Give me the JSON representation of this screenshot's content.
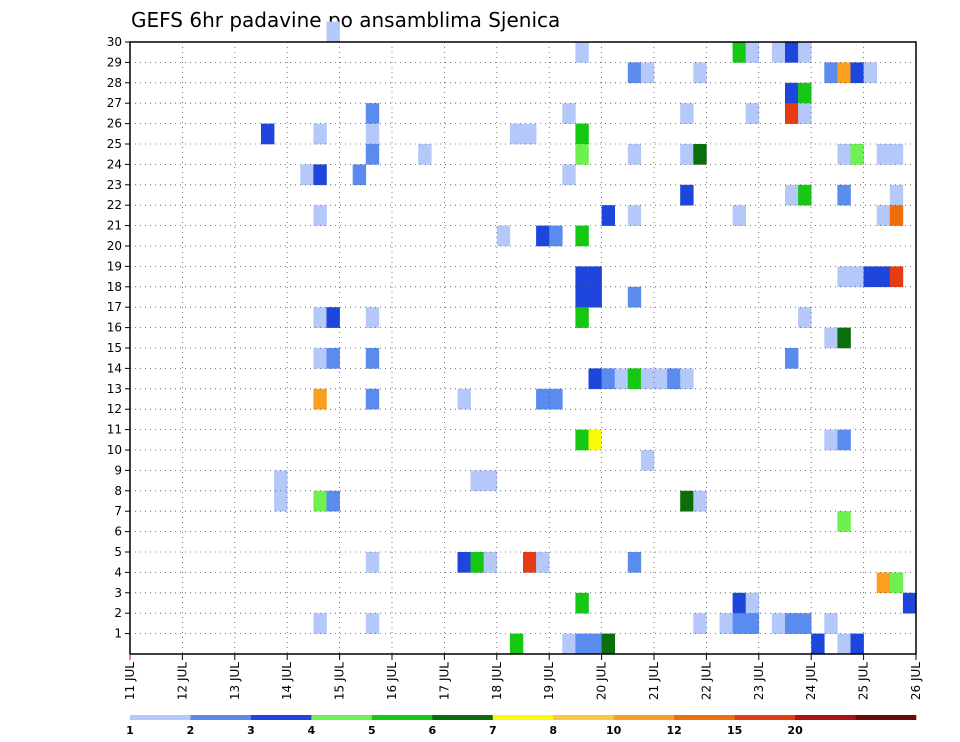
{
  "chart_data": {
    "type": "heatmap",
    "title": "GEFS 6hr padavine po ansamblima Sjenica",
    "xlabel": "",
    "ylabel": "",
    "x_ticks": [
      "11 JUL",
      "12 JUL",
      "13 JUL",
      "14 JUL",
      "15 JUL",
      "16 JUL",
      "17 JUL",
      "18 JUL",
      "19 JUL",
      "20 JUL",
      "21 JUL",
      "22 JUL",
      "23 JUL",
      "24 JUL",
      "25 JUL",
      "26 JUL"
    ],
    "y_ticks": [
      "1",
      "2",
      "3",
      "4",
      "5",
      "6",
      "7",
      "8",
      "9",
      "10",
      "11",
      "12",
      "13",
      "14",
      "15",
      "16",
      "17",
      "18",
      "19",
      "20",
      "21",
      "22",
      "23",
      "24",
      "25",
      "26",
      "27",
      "28",
      "29",
      "30"
    ],
    "xlim": [
      0,
      60
    ],
    "ylim": [
      0,
      30
    ],
    "grid": true,
    "x_unit": "6-hour steps since 11 JUL 00Z",
    "legend": {
      "placement": "bottom",
      "labels": [
        "1",
        "2",
        "3",
        "4",
        "5",
        "6",
        "7",
        "8",
        "10",
        "12",
        "15",
        "20"
      ],
      "colors": [
        "#b4c8fa",
        "#5a8cf0",
        "#1e46dc",
        "#6ef050",
        "#14c814",
        "#0a6e0a",
        "#fafa0a",
        "#fac83c",
        "#faa01e",
        "#f06e0a",
        "#e63c14",
        "#aa1414",
        "#6e0a0a"
      ]
    },
    "cells": [
      {
        "x": 15,
        "y": 30,
        "c": 0
      },
      {
        "x": 34,
        "y": 29,
        "c": 0
      },
      {
        "x": 46,
        "y": 29,
        "c": 4
      },
      {
        "x": 47,
        "y": 29,
        "c": 0
      },
      {
        "x": 49,
        "y": 29,
        "c": 0
      },
      {
        "x": 50,
        "y": 29,
        "c": 2
      },
      {
        "x": 51,
        "y": 29,
        "c": 0
      },
      {
        "x": 38,
        "y": 28,
        "c": 1
      },
      {
        "x": 39,
        "y": 28,
        "c": 0
      },
      {
        "x": 43,
        "y": 28,
        "c": 0
      },
      {
        "x": 53,
        "y": 28,
        "c": 1
      },
      {
        "x": 54,
        "y": 28,
        "c": 8
      },
      {
        "x": 55,
        "y": 28,
        "c": 2
      },
      {
        "x": 56,
        "y": 28,
        "c": 0
      },
      {
        "x": 50,
        "y": 27,
        "c": 2
      },
      {
        "x": 51,
        "y": 27,
        "c": 4
      },
      {
        "x": 18,
        "y": 26,
        "c": 1
      },
      {
        "x": 33,
        "y": 26,
        "c": 0
      },
      {
        "x": 42,
        "y": 26,
        "c": 0
      },
      {
        "x": 47,
        "y": 26,
        "c": 0
      },
      {
        "x": 50,
        "y": 26,
        "c": 10
      },
      {
        "x": 51,
        "y": 26,
        "c": 0
      },
      {
        "x": 10,
        "y": 25,
        "c": 2
      },
      {
        "x": 14,
        "y": 25,
        "c": 0
      },
      {
        "x": 18,
        "y": 25,
        "c": 0
      },
      {
        "x": 29,
        "y": 25,
        "c": 0
      },
      {
        "x": 30,
        "y": 25,
        "c": 0
      },
      {
        "x": 34,
        "y": 25,
        "c": 4
      },
      {
        "x": 18,
        "y": 24,
        "c": 1
      },
      {
        "x": 22,
        "y": 24,
        "c": 0
      },
      {
        "x": 34,
        "y": 24,
        "c": 3
      },
      {
        "x": 38,
        "y": 24,
        "c": 0
      },
      {
        "x": 42,
        "y": 24,
        "c": 0
      },
      {
        "x": 43,
        "y": 24,
        "c": 5
      },
      {
        "x": 54,
        "y": 24,
        "c": 0
      },
      {
        "x": 55,
        "y": 24,
        "c": 3
      },
      {
        "x": 57,
        "y": 24,
        "c": 0
      },
      {
        "x": 58,
        "y": 24,
        "c": 0
      },
      {
        "x": 13,
        "y": 23,
        "c": 0
      },
      {
        "x": 14,
        "y": 23,
        "c": 2
      },
      {
        "x": 17,
        "y": 23,
        "c": 1
      },
      {
        "x": 33,
        "y": 23,
        "c": 0
      },
      {
        "x": 42,
        "y": 22,
        "c": 2
      },
      {
        "x": 50,
        "y": 22,
        "c": 0
      },
      {
        "x": 51,
        "y": 22,
        "c": 4
      },
      {
        "x": 54,
        "y": 22,
        "c": 1
      },
      {
        "x": 58,
        "y": 22,
        "c": 0
      },
      {
        "x": 14,
        "y": 21,
        "c": 0
      },
      {
        "x": 36,
        "y": 21,
        "c": 2
      },
      {
        "x": 38,
        "y": 21,
        "c": 0
      },
      {
        "x": 46,
        "y": 21,
        "c": 0
      },
      {
        "x": 57,
        "y": 21,
        "c": 0
      },
      {
        "x": 58,
        "y": 21,
        "c": 9
      },
      {
        "x": 28,
        "y": 20,
        "c": 0
      },
      {
        "x": 31,
        "y": 20,
        "c": 2
      },
      {
        "x": 32,
        "y": 20,
        "c": 1
      },
      {
        "x": 34,
        "y": 20,
        "c": 4
      },
      {
        "x": 34,
        "y": 18,
        "c": 2
      },
      {
        "x": 35,
        "y": 18,
        "c": 2
      },
      {
        "x": 54,
        "y": 18,
        "c": 0
      },
      {
        "x": 55,
        "y": 18,
        "c": 0
      },
      {
        "x": 56,
        "y": 18,
        "c": 2
      },
      {
        "x": 57,
        "y": 18,
        "c": 2
      },
      {
        "x": 58,
        "y": 18,
        "c": 10
      },
      {
        "x": 34,
        "y": 17,
        "c": 2
      },
      {
        "x": 35,
        "y": 17,
        "c": 2
      },
      {
        "x": 38,
        "y": 17,
        "c": 1
      },
      {
        "x": 14,
        "y": 16,
        "c": 0
      },
      {
        "x": 15,
        "y": 16,
        "c": 2
      },
      {
        "x": 18,
        "y": 16,
        "c": 0
      },
      {
        "x": 34,
        "y": 16,
        "c": 4
      },
      {
        "x": 51,
        "y": 16,
        "c": 0
      },
      {
        "x": 53,
        "y": 15,
        "c": 0
      },
      {
        "x": 54,
        "y": 15,
        "c": 5
      },
      {
        "x": 14,
        "y": 14,
        "c": 0
      },
      {
        "x": 15,
        "y": 14,
        "c": 1
      },
      {
        "x": 18,
        "y": 14,
        "c": 1
      },
      {
        "x": 50,
        "y": 14,
        "c": 1
      },
      {
        "x": 35,
        "y": 13,
        "c": 2
      },
      {
        "x": 36,
        "y": 13,
        "c": 1
      },
      {
        "x": 37,
        "y": 13,
        "c": 0
      },
      {
        "x": 38,
        "y": 13,
        "c": 4
      },
      {
        "x": 39,
        "y": 13,
        "c": 0
      },
      {
        "x": 40,
        "y": 13,
        "c": 0
      },
      {
        "x": 41,
        "y": 13,
        "c": 1
      },
      {
        "x": 42,
        "y": 13,
        "c": 0
      },
      {
        "x": 14,
        "y": 12,
        "c": 8
      },
      {
        "x": 18,
        "y": 12,
        "c": 1
      },
      {
        "x": 25,
        "y": 12,
        "c": 0
      },
      {
        "x": 31,
        "y": 12,
        "c": 1
      },
      {
        "x": 32,
        "y": 12,
        "c": 1
      },
      {
        "x": 34,
        "y": 10,
        "c": 4
      },
      {
        "x": 35,
        "y": 10,
        "c": 6
      },
      {
        "x": 53,
        "y": 10,
        "c": 0
      },
      {
        "x": 54,
        "y": 10,
        "c": 1
      },
      {
        "x": 39,
        "y": 9,
        "c": 0
      },
      {
        "x": 11,
        "y": 8,
        "c": 0
      },
      {
        "x": 26,
        "y": 8,
        "c": 0
      },
      {
        "x": 27,
        "y": 8,
        "c": 0
      },
      {
        "x": 11,
        "y": 7,
        "c": 0
      },
      {
        "x": 14,
        "y": 7,
        "c": 3
      },
      {
        "x": 15,
        "y": 7,
        "c": 1
      },
      {
        "x": 42,
        "y": 7,
        "c": 5
      },
      {
        "x": 43,
        "y": 7,
        "c": 0
      },
      {
        "x": 54,
        "y": 6,
        "c": 3
      },
      {
        "x": 18,
        "y": 4,
        "c": 0
      },
      {
        "x": 25,
        "y": 4,
        "c": 2
      },
      {
        "x": 26,
        "y": 4,
        "c": 4
      },
      {
        "x": 27,
        "y": 4,
        "c": 0
      },
      {
        "x": 30,
        "y": 4,
        "c": 10
      },
      {
        "x": 31,
        "y": 4,
        "c": 0
      },
      {
        "x": 38,
        "y": 4,
        "c": 1
      },
      {
        "x": 57,
        "y": 3,
        "c": 8
      },
      {
        "x": 58,
        "y": 3,
        "c": 3
      },
      {
        "x": 34,
        "y": 2,
        "c": 4
      },
      {
        "x": 46,
        "y": 2,
        "c": 2
      },
      {
        "x": 47,
        "y": 2,
        "c": 0
      },
      {
        "x": 59,
        "y": 2,
        "c": 2
      },
      {
        "x": 14,
        "y": 1,
        "c": 0
      },
      {
        "x": 18,
        "y": 1,
        "c": 0
      },
      {
        "x": 43,
        "y": 1,
        "c": 0
      },
      {
        "x": 45,
        "y": 1,
        "c": 0
      },
      {
        "x": 46,
        "y": 1,
        "c": 1
      },
      {
        "x": 47,
        "y": 1,
        "c": 1
      },
      {
        "x": 49,
        "y": 1,
        "c": 0
      },
      {
        "x": 50,
        "y": 1,
        "c": 1
      },
      {
        "x": 51,
        "y": 1,
        "c": 1
      },
      {
        "x": 53,
        "y": 1,
        "c": 0
      },
      {
        "x": 29,
        "y": 0,
        "c": 4
      },
      {
        "x": 33,
        "y": 0,
        "c": 0
      },
      {
        "x": 34,
        "y": 0,
        "c": 1
      },
      {
        "x": 35,
        "y": 0,
        "c": 1
      },
      {
        "x": 36,
        "y": 0,
        "c": 5
      },
      {
        "x": 52,
        "y": 0,
        "c": 2
      },
      {
        "x": 54,
        "y": 0,
        "c": 0
      },
      {
        "x": 55,
        "y": 0,
        "c": 2
      }
    ]
  }
}
